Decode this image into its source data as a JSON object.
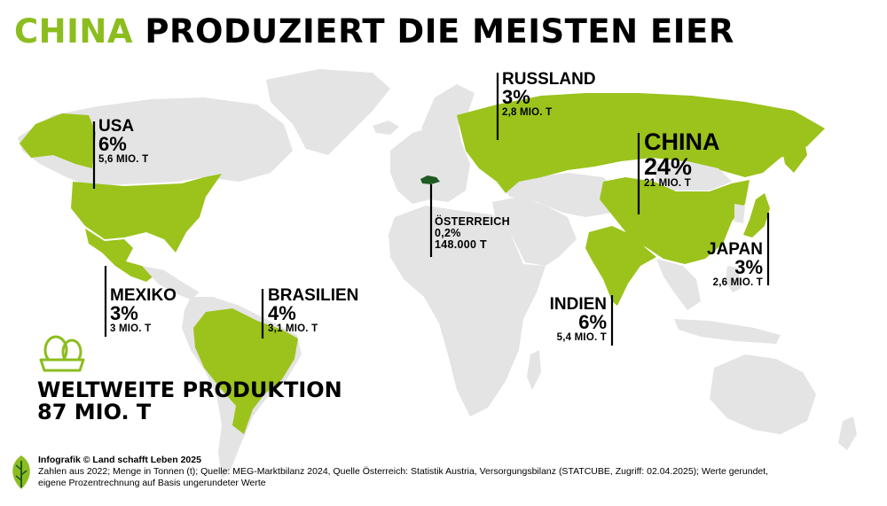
{
  "title": {
    "accent": "CHINA",
    "rest": " PRODUZIERT DIE MEISTEN EIER"
  },
  "countries": {
    "usa": {
      "name": "USA",
      "pct": "6%",
      "amount": "5,6 MIO. T"
    },
    "mexiko": {
      "name": "MEXIKO",
      "pct": "3%",
      "amount": "3 MIO. T"
    },
    "brasilien": {
      "name": "BRASILIEN",
      "pct": "4%",
      "amount": "3,1 MIO. T"
    },
    "russland": {
      "name": "RUSSLAND",
      "pct": "3%",
      "amount": "2,8 MIO. T"
    },
    "oesterreich": {
      "name": "ÖSTERREICH",
      "pct": "0,2%",
      "amount": "148.000 T"
    },
    "china": {
      "name": "CHINA",
      "pct": "24%",
      "amount": "21 MIO. T"
    },
    "japan": {
      "name": "JAPAN",
      "pct": "3%",
      "amount": "2,6 MIO. T"
    },
    "indien": {
      "name": "INDIEN",
      "pct": "6%",
      "amount": "5,4 MIO. T"
    }
  },
  "world_production": {
    "line1": "WELTWEITE PRODUKTION",
    "line2": "87 MIO. T"
  },
  "footer": {
    "credit": "Infografik © Land schafft Leben 2025",
    "note1": "Zahlen aus 2022; Menge in Tonnen (t); Quelle: MEG-Marktbilanz 2024, Quelle Österreich: Statistik Austria, Versorgungsbilanz (STATCUBE, Zugriff: 02.04.2025); Werte gerundet,",
    "note2": "eigene Prozentrechnung auf Basis ungerundeter Werte"
  },
  "colors": {
    "highlight": "#9bc31c",
    "accent_title": "#8cbd1f",
    "land": "#e4e4e4",
    "austria": "#1f5a22"
  },
  "icons": [
    "eggs-icon",
    "land-schafft-leben-logo"
  ]
}
